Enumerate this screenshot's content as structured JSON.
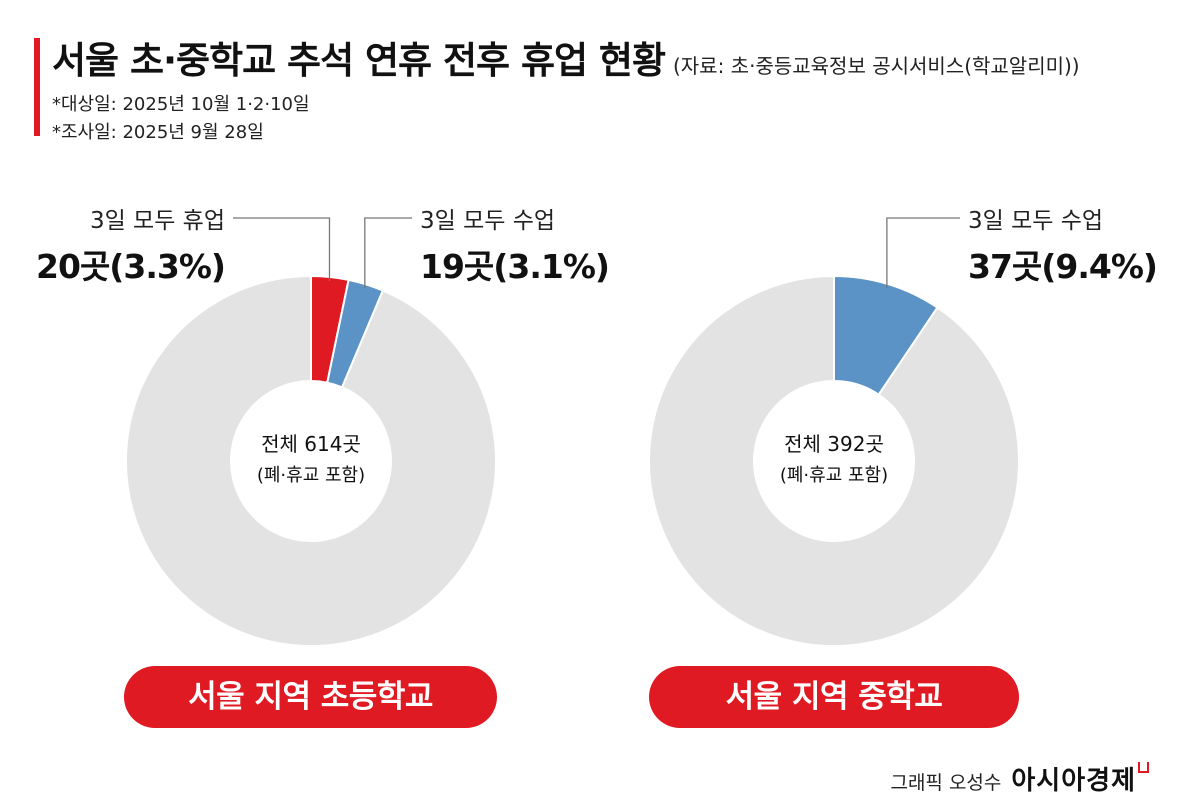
{
  "header": {
    "title": "서울 초·중학교 추석 연휴 전후 휴업 현황",
    "source": "(자료: 초·중등교육정보 공시서비스(학교알리미))",
    "note1": "*대상일: 2025년 10월 1·2·10일",
    "note2": "*조사일: 2025년 9월 28일"
  },
  "credit": {
    "label": "그래픽 오성수",
    "brand": "아시아경제"
  },
  "colors": {
    "closed": "#e01a22",
    "classes": "#5b93c7",
    "rest": "#e3e3e3",
    "pill": "#e01a22"
  },
  "chart_data": [
    {
      "type": "pie",
      "name": "서울 지역 초등학교",
      "center_label": [
        "전체 614곳",
        "(폐·휴교 포함)"
      ],
      "total": 614,
      "slices": [
        {
          "key": "closed",
          "label": "3일 모두 휴업",
          "value": 20,
          "percent": 3.3,
          "value_label": "20곳(3.3%)"
        },
        {
          "key": "classes",
          "label": "3일 모두 수업",
          "value": 19,
          "percent": 3.1,
          "value_label": "19곳(3.1%)"
        },
        {
          "key": "rest",
          "label": "",
          "value": 575
        }
      ]
    },
    {
      "type": "pie",
      "name": "서울 지역 중학교",
      "center_label": [
        "전체 392곳",
        "(폐·휴교 포함)"
      ],
      "total": 392,
      "slices": [
        {
          "key": "classes",
          "label": "3일 모두 수업",
          "value": 37,
          "percent": 9.4,
          "value_label": "37곳(9.4%)"
        },
        {
          "key": "rest",
          "label": "",
          "value": 355
        }
      ]
    }
  ]
}
